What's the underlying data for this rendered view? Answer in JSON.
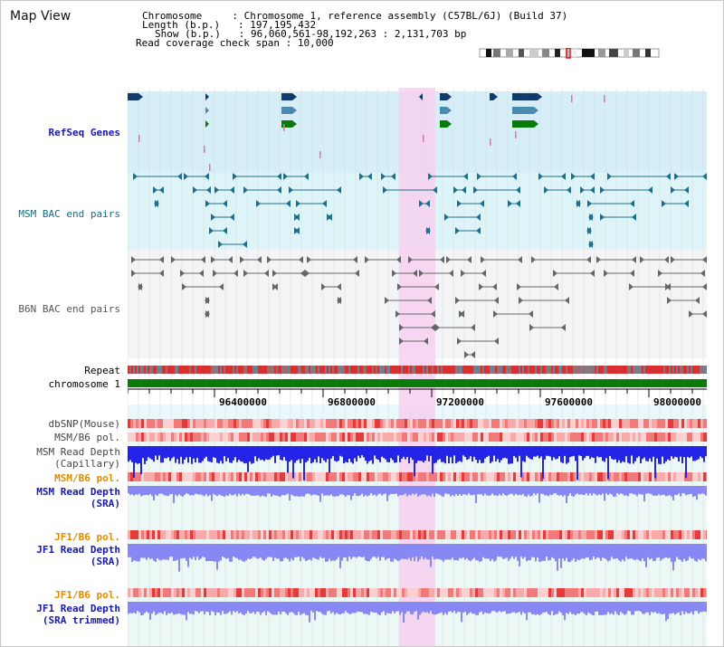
{
  "page": {
    "title": "Map View"
  },
  "info": {
    "chromosome_key": "Chromosome",
    "chromosome_value": "Chromosome 1, reference assembly (C57BL/6J) (Build 37)",
    "length_key": "Length (b.p.)",
    "length_value": "197,195,432",
    "show_key": "Show (b.p.)",
    "show_value": "96,060,561-98,192,263 : 2,131,703 bp",
    "span_key": "Read coverage check span",
    "span_value": "10,000"
  },
  "tracks": {
    "refseq": "RefSeq Genes",
    "msm_bac": "MSM BAC end pairs",
    "b6n_bac": "B6N BAC end pairs",
    "repeat": "Repeat",
    "chromosome": "chromosome 1",
    "dbsnp": "dbSNP(Mouse)",
    "msm_b6_pol_1": "MSM/B6 pol.",
    "msm_depth_cap_1": "MSM Read Depth",
    "msm_depth_cap_2": "(Capillary)",
    "msm_b6_pol_2": "MSM/B6 pol.",
    "msm_depth_sra_1": "MSM Read Depth",
    "msm_depth_sra_2": "(SRA)",
    "jf1_b6_pol_1": "JF1/B6 pol.",
    "jf1_depth_1": "JF1 Read Depth",
    "jf1_depth_2": "(SRA)",
    "jf1_b6_pol_2": "JF1/B6 pol.",
    "jf1_depth_trim_1": "JF1 Read Depth",
    "jf1_depth_trim_2": "(SRA trimmed)"
  },
  "axis": {
    "ticks": [
      "96400000",
      "96800000",
      "97200000",
      "97600000",
      "98000000"
    ]
  },
  "colors": {
    "highlight": "#f7d0f0",
    "refseq_bg": "#d6eef8",
    "msm_bac_bg": "#ddf5f8",
    "b6n_bac_bg": "#f2f4f6",
    "depth_bg": "#eaf7fb",
    "chromosome_bar": "#0a7a0a",
    "depth_blue": "#2424e8",
    "depth_light": "#8888f4"
  }
}
